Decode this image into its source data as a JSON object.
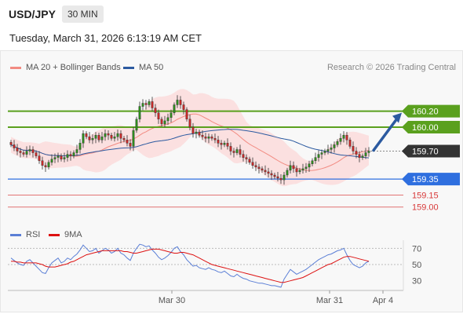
{
  "header": {
    "pair": "USD/JPY",
    "timeframe": "30 MIN",
    "datetime": "Tuesday, March 31, 2026 6:13:19 AM CET"
  },
  "legend": {
    "ma20": {
      "label": "MA 20 + Bollinger Bands",
      "color": "#f28b82"
    },
    "ma50": {
      "label": "MA 50",
      "color": "#2c5aa0"
    },
    "credit": "Research © 2026 Trading Central"
  },
  "rsi_legend": {
    "rsi": {
      "label": "RSI",
      "color": "#5b7fd6"
    },
    "ma9": {
      "label": "9MA",
      "color": "#dd1111"
    }
  },
  "chart_data": [
    {
      "type": "candlestick",
      "title": "USD/JPY",
      "x_tick_labels": [
        "Mar 30",
        "Mar 31",
        "Apr 4"
      ],
      "ylim": [
        158.82,
        160.58
      ],
      "y_markers": [
        {
          "label": "160.20",
          "value": 160.2,
          "role": "resistance",
          "color": "#5aa01e"
        },
        {
          "label": "160.00",
          "value": 160.0,
          "role": "resistance",
          "color": "#5aa01e"
        },
        {
          "label": "159.70",
          "value": 159.7,
          "role": "last price",
          "color": "#333333"
        },
        {
          "label": "159.35",
          "value": 159.35,
          "role": "support",
          "color": "#2f6fdf"
        },
        {
          "label": "159.15",
          "value": 159.15,
          "role": "support",
          "color": "#d83a3a"
        },
        {
          "label": "159.00",
          "value": 159.0,
          "role": "support",
          "color": "#d83a3a"
        }
      ],
      "close": [
        159.78,
        159.74,
        159.7,
        159.68,
        159.66,
        159.7,
        159.72,
        159.68,
        159.64,
        159.58,
        159.52,
        159.5,
        159.56,
        159.6,
        159.62,
        159.64,
        159.6,
        159.62,
        159.66,
        159.64,
        159.68,
        159.72,
        159.8,
        159.92,
        159.88,
        159.84,
        159.86,
        159.9,
        159.84,
        159.88,
        159.92,
        159.9,
        159.86,
        159.88,
        159.92,
        159.86,
        159.84,
        159.8,
        159.76,
        159.96,
        160.1,
        160.26,
        160.3,
        160.28,
        160.32,
        160.24,
        160.18,
        160.1,
        160.04,
        160.08,
        160.12,
        160.18,
        160.28,
        160.34,
        160.28,
        160.22,
        160.1,
        160.0,
        159.92,
        159.94,
        159.9,
        159.88,
        159.86,
        159.88,
        159.86,
        159.84,
        159.8,
        159.78,
        159.8,
        159.76,
        159.7,
        159.68,
        159.72,
        159.66,
        159.62,
        159.6,
        159.56,
        159.52,
        159.5,
        159.48,
        159.46,
        159.44,
        159.42,
        159.4,
        159.38,
        159.36,
        159.34,
        159.4,
        159.46,
        159.52,
        159.48,
        159.44,
        159.46,
        159.48,
        159.5,
        159.54,
        159.58,
        159.62,
        159.66,
        159.68,
        159.7,
        159.72,
        159.74,
        159.78,
        159.82,
        159.86,
        159.9,
        159.84,
        159.76,
        159.7,
        159.66,
        159.62,
        159.64,
        159.68,
        159.7
      ]
    },
    {
      "type": "line",
      "title": "RSI",
      "ylim": [
        20,
        80
      ],
      "y_ticks": [
        70,
        50,
        30
      ],
      "series": [
        {
          "name": "RSI",
          "values": [
            58,
            55,
            52,
            50,
            49,
            54,
            56,
            52,
            48,
            44,
            40,
            39,
            46,
            52,
            55,
            58,
            52,
            54,
            58,
            56,
            60,
            63,
            68,
            74,
            70,
            66,
            67,
            70,
            64,
            67,
            70,
            68,
            64,
            66,
            70,
            64,
            62,
            58,
            55,
            64,
            70,
            75,
            74,
            72,
            73,
            68,
            64,
            59,
            56,
            58,
            61,
            65,
            70,
            72,
            66,
            62,
            56,
            52,
            48,
            49,
            46,
            45,
            44,
            46,
            44,
            43,
            41,
            40,
            42,
            39,
            36,
            35,
            38,
            35,
            33,
            32,
            30,
            29,
            28,
            27,
            27,
            26,
            25,
            24,
            24,
            23,
            22,
            32,
            38,
            44,
            41,
            38,
            40,
            42,
            44,
            47,
            50,
            53,
            56,
            58,
            60,
            62,
            63,
            65,
            67,
            68,
            70,
            62,
            55,
            50,
            48,
            46,
            48,
            52,
            54
          ]
        },
        {
          "name": "9MA",
          "values": [
            54,
            54,
            53,
            53,
            52,
            52,
            52,
            52,
            52,
            51,
            50,
            48,
            47,
            47,
            47,
            48,
            49,
            50,
            51,
            53,
            54,
            56,
            58,
            60,
            62,
            63,
            64,
            65,
            66,
            67,
            67,
            67,
            67,
            67,
            67,
            67,
            66,
            66,
            65,
            64,
            64,
            65,
            66,
            67,
            68,
            69,
            69,
            69,
            68,
            67,
            66,
            65,
            64,
            64,
            65,
            65,
            64,
            63,
            62,
            60,
            58,
            56,
            54,
            52,
            50,
            49,
            48,
            47,
            46,
            45,
            44,
            43,
            42,
            41,
            40,
            39,
            38,
            37,
            36,
            35,
            34,
            33,
            32,
            31,
            30,
            29,
            28,
            28,
            29,
            30,
            31,
            32,
            33,
            34,
            36,
            38,
            40,
            42,
            44,
            46,
            48,
            50,
            51,
            53,
            55,
            57,
            59,
            60,
            60,
            59,
            58,
            57,
            56,
            55,
            54
          ]
        }
      ]
    }
  ]
}
